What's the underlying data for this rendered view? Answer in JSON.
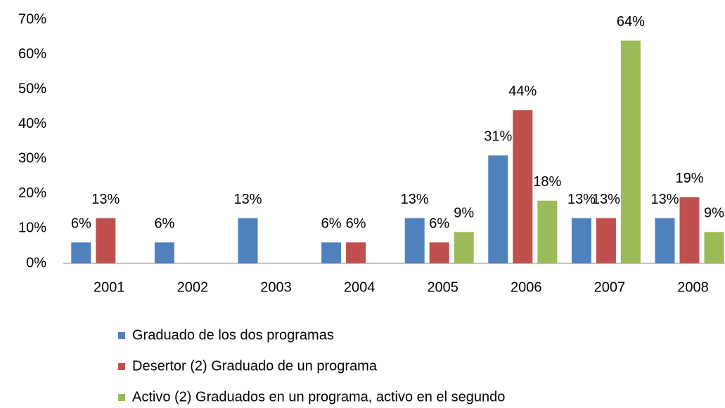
{
  "chart_data": {
    "type": "bar",
    "categories": [
      "2001",
      "2002",
      "2003",
      "2004",
      "2005",
      "2006",
      "2007",
      "2008"
    ],
    "series": [
      {
        "name": "Graduado de los dos programas",
        "color": "#4f81bd",
        "values": [
          6,
          6,
          13,
          6,
          13,
          31,
          13,
          13
        ],
        "value_labels": [
          "6%",
          "6%",
          "13%",
          "6%",
          "13%",
          "31%",
          "13%",
          "13%"
        ]
      },
      {
        "name": "Desertor (2) Graduado de un programa",
        "color": "#c0504d",
        "values": [
          13,
          null,
          null,
          6,
          6,
          44,
          13,
          19
        ],
        "value_labels": [
          "13%",
          null,
          null,
          "6%",
          "6%",
          "44%",
          "13%",
          "19%"
        ]
      },
      {
        "name": "Activo (2) Graduados en un programa, activo en el segundo",
        "color": "#9bbb59",
        "values": [
          null,
          null,
          null,
          null,
          9,
          18,
          64,
          9
        ],
        "value_labels": [
          null,
          null,
          null,
          null,
          "9%",
          "18%",
          "64%",
          "9%"
        ]
      }
    ],
    "ylim": [
      0,
      70
    ],
    "yticks": [
      {
        "value": 0,
        "label": "0%"
      },
      {
        "value": 10,
        "label": "10%"
      },
      {
        "value": 20,
        "label": "20%"
      },
      {
        "value": 30,
        "label": "30%"
      },
      {
        "value": 40,
        "label": "40%"
      },
      {
        "value": 50,
        "label": "50%"
      },
      {
        "value": 60,
        "label": "60%"
      },
      {
        "value": 70,
        "label": "70%"
      }
    ],
    "grid": false,
    "legend": "bottom"
  }
}
